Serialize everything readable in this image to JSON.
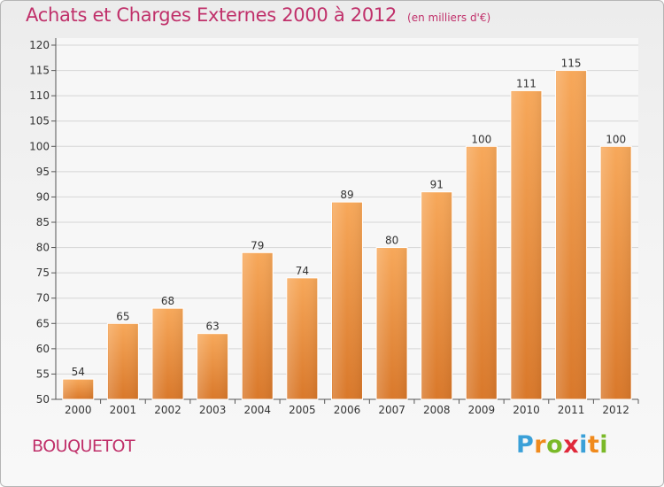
{
  "title": "Achats et Charges Externes 2000 à 2012",
  "subtitle": "(en milliers d'€)",
  "city": "BOUQUETOT",
  "logo": {
    "text": "Proxiti",
    "letters": [
      {
        "ch": "P",
        "color": "#3aa0d8"
      },
      {
        "ch": "r",
        "color": "#f08a1c"
      },
      {
        "ch": "o",
        "color": "#7ab928"
      },
      {
        "ch": "x",
        "color": "#e0283a"
      },
      {
        "ch": "i",
        "color": "#3aa0d8"
      },
      {
        "ch": "t",
        "color": "#f08a1c"
      },
      {
        "ch": "i",
        "color": "#7ab928"
      }
    ]
  },
  "chart_data": {
    "type": "bar",
    "categories": [
      "2000",
      "2001",
      "2002",
      "2003",
      "2004",
      "2005",
      "2006",
      "2007",
      "2008",
      "2009",
      "2010",
      "2011",
      "2012"
    ],
    "values": [
      54,
      65,
      68,
      63,
      79,
      74,
      89,
      80,
      91,
      100,
      111,
      115,
      100
    ],
    "ylim": [
      50,
      120
    ],
    "yticks": [
      50,
      55,
      60,
      65,
      70,
      75,
      80,
      85,
      90,
      95,
      100,
      105,
      110,
      115,
      120
    ],
    "grid": true,
    "bar_color_top": "#f7a85a",
    "bar_color_bottom": "#d9782a",
    "data_labels": true
  }
}
